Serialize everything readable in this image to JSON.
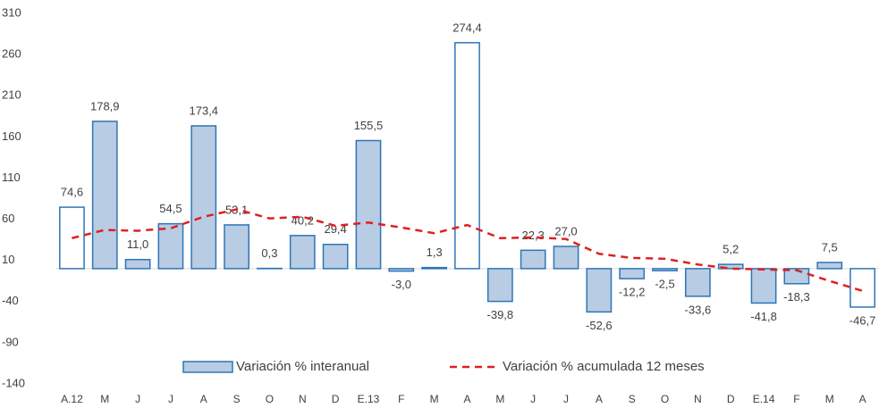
{
  "chart_data": {
    "type": "bar_line",
    "categories": [
      "A.12",
      "M",
      "J",
      "J",
      "A",
      "S",
      "O",
      "N",
      "D",
      "E.13",
      "F",
      "M",
      "A",
      "M",
      "J",
      "J",
      "A",
      "S",
      "O",
      "N",
      "D",
      "E.14",
      "F",
      "M",
      "A"
    ],
    "series": [
      {
        "name": "Variación % interanual",
        "type": "bar",
        "color": "#b8cce4",
        "edge_color": "#2e75b6",
        "colors": [
          "#ffffff",
          "#b8cce4",
          "#b8cce4",
          "#b8cce4",
          "#b8cce4",
          "#b8cce4",
          "#b8cce4",
          "#b8cce4",
          "#b8cce4",
          "#b8cce4",
          "#b8cce4",
          "#b8cce4",
          "#ffffff",
          "#b8cce4",
          "#b8cce4",
          "#b8cce4",
          "#b8cce4",
          "#b8cce4",
          "#b8cce4",
          "#b8cce4",
          "#b8cce4",
          "#b8cce4",
          "#b8cce4",
          "#b8cce4",
          "#ffffff"
        ],
        "values": [
          74.6,
          178.9,
          11.0,
          54.5,
          173.4,
          53.1,
          0.3,
          40.2,
          29.4,
          155.5,
          -3.0,
          1.3,
          274.4,
          -39.8,
          22.3,
          27.0,
          -52.6,
          -12.2,
          -2.5,
          -33.6,
          5.2,
          -41.8,
          -18.3,
          7.5,
          -46.7
        ],
        "value_labels": [
          "74,6",
          "178,9",
          "11,0",
          "54,5",
          "173,4",
          "53,1",
          "0,3",
          "40,2",
          "29,4",
          "155,5",
          "-3,0",
          "1,3",
          "274,4",
          "-39,8",
          "22,3",
          "27,0",
          "-52,6",
          "-12,2",
          "-2,5",
          "-33,6",
          "5,2",
          "-41,8",
          "-18,3",
          "7,5",
          "-46,7"
        ]
      },
      {
        "name": "Variación % acumulada 12 meses",
        "type": "line",
        "color": "#e02020",
        "dashed": true,
        "values": [
          37,
          47,
          46,
          49,
          63,
          72,
          61,
          63,
          52,
          56,
          50,
          43,
          53,
          37,
          38,
          36,
          18,
          13,
          12,
          5,
          0,
          -1,
          -2,
          -15,
          -27
        ]
      }
    ],
    "ylim": [
      -140,
      310
    ],
    "yticks": [
      -140,
      -90,
      -40,
      10,
      60,
      110,
      160,
      210,
      260,
      310
    ],
    "grid": false,
    "legend": "bottom"
  }
}
